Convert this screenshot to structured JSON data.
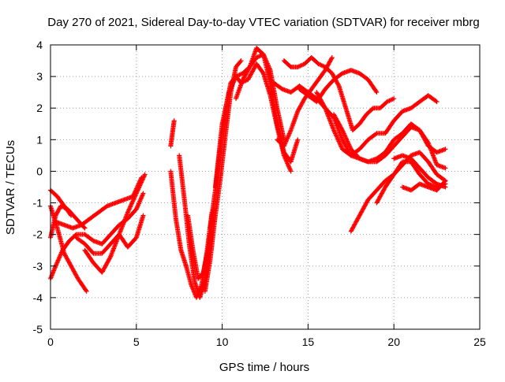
{
  "chart_data": {
    "type": "scatter",
    "title": "Day 270 of 2021, Sidereal Day-to-day VTEC variation (SDTVAR) for receiver mbrg",
    "xlabel": "GPS time / hours",
    "ylabel": "SDTVAR / TECUs",
    "xlim": [
      0,
      25
    ],
    "ylim": [
      -5,
      4
    ],
    "xticks": [
      0,
      5,
      10,
      15,
      20,
      25
    ],
    "yticks": [
      -5,
      -4,
      -3,
      -2,
      -1,
      0,
      1,
      2,
      3,
      4
    ],
    "xtick_labels": [
      "0",
      "5",
      "10",
      "15",
      "20",
      "25"
    ],
    "ytick_labels": [
      "-5",
      "-4",
      "-3",
      "-2",
      "-1",
      "0",
      "1",
      "2",
      "3",
      "4"
    ],
    "grid": true,
    "marker": "+",
    "color": "#ff0000",
    "series": [
      {
        "x": [
          0.0,
          0.3,
          0.6,
          1.0,
          1.5,
          2.0
        ],
        "y": [
          -2.1,
          -1.4,
          -1.1,
          -1.2,
          -1.5,
          -1.8
        ]
      },
      {
        "x": [
          0.0,
          0.3,
          0.7,
          1.1,
          1.5,
          2.0,
          2.5,
          3.0,
          3.5,
          4.0,
          4.5,
          5.0,
          5.4
        ],
        "y": [
          -3.4,
          -3.0,
          -2.5,
          -2.2,
          -2.0,
          -2.0,
          -2.2,
          -2.3,
          -2.0,
          -1.7,
          -1.5,
          -1.2,
          -0.7
        ]
      },
      {
        "x": [
          0.0,
          0.4,
          0.8,
          1.2,
          1.6,
          2.1
        ],
        "y": [
          -1.1,
          -1.8,
          -2.6,
          -3.0,
          -3.4,
          -3.8
        ]
      },
      {
        "x": [
          0.0,
          0.4,
          0.8,
          1.2
        ],
        "y": [
          -0.6,
          -0.8,
          -1.1,
          -1.4
        ]
      },
      {
        "x": [
          0.3,
          0.8,
          1.3,
          1.8,
          2.3,
          2.8,
          3.3,
          3.8,
          4.3,
          4.8,
          5.3
        ],
        "y": [
          -1.6,
          -1.7,
          -1.8,
          -1.7,
          -1.5,
          -1.3,
          -1.1,
          -1.0,
          -0.9,
          -0.8,
          -0.2
        ]
      },
      {
        "x": [
          1.5,
          2.0,
          2.5,
          3.0,
          3.5,
          4.0,
          4.5,
          5.0,
          5.4
        ],
        "y": [
          -2.1,
          -2.3,
          -2.6,
          -2.6,
          -2.3,
          -2.0,
          -2.4,
          -2.1,
          -1.4
        ]
      },
      {
        "x": [
          2.0,
          2.5,
          3.0,
          3.5,
          4.0,
          4.5,
          5.0,
          5.5
        ],
        "y": [
          -2.5,
          -2.9,
          -3.2,
          -2.7,
          -2.0,
          -1.3,
          -0.7,
          -0.1
        ]
      },
      {
        "x": [
          7.0,
          7.1,
          7.2
        ],
        "y": [
          0.8,
          1.2,
          1.6
        ]
      },
      {
        "x": [
          7.0,
          7.3,
          7.6,
          7.9,
          8.2,
          8.5,
          8.8,
          9.1,
          9.4
        ],
        "y": [
          0.0,
          -1.5,
          -2.5,
          -3.0,
          -3.6,
          -4.0,
          -3.6,
          -2.6,
          -1.3
        ]
      },
      {
        "x": [
          7.5,
          7.8,
          8.1,
          8.4,
          8.7,
          9.0,
          9.3
        ],
        "y": [
          0.5,
          -0.9,
          -2.4,
          -3.5,
          -4.0,
          -3.4,
          -2.0
        ]
      },
      {
        "x": [
          8.0,
          8.3,
          8.6,
          8.9,
          9.2,
          9.5
        ],
        "y": [
          -1.4,
          -2.5,
          -3.4,
          -3.2,
          -2.4,
          -1.2
        ]
      },
      {
        "x": [
          9.0,
          9.3,
          9.6,
          9.9,
          10.2,
          10.5,
          10.8,
          11.1
        ],
        "y": [
          -3.8,
          -2.8,
          -1.4,
          -0.2,
          1.2,
          2.5,
          3.3,
          3.5
        ]
      },
      {
        "x": [
          9.3,
          9.6,
          9.9,
          10.2,
          10.5,
          10.8,
          11.1,
          11.5,
          12.0,
          12.4,
          12.8,
          13.2,
          13.6,
          14.0
        ],
        "y": [
          -1.8,
          -0.6,
          0.8,
          2.0,
          2.8,
          3.0,
          2.8,
          2.9,
          3.4,
          3.1,
          2.4,
          1.4,
          0.5,
          0.0
        ]
      },
      {
        "x": [
          9.6,
          10.0,
          10.4,
          10.8,
          11.2,
          11.6,
          12.0,
          12.4,
          12.8,
          13.2,
          13.6
        ],
        "y": [
          -0.5,
          1.5,
          2.5,
          3.0,
          3.1,
          3.3,
          3.6,
          3.7,
          3.2,
          2.0,
          1.0
        ]
      },
      {
        "x": [
          10.8,
          11.2,
          11.6,
          12.0,
          12.4,
          12.8,
          13.2,
          13.6,
          14.0,
          14.4
        ],
        "y": [
          2.3,
          2.9,
          3.3,
          3.9,
          3.7,
          2.8,
          1.5,
          0.6,
          0.3,
          1.0
        ]
      },
      {
        "x": [
          13.2,
          13.6,
          14.0,
          14.4,
          14.8,
          15.2,
          15.6,
          16.0,
          16.4
        ],
        "y": [
          1.0,
          0.8,
          1.3,
          1.9,
          2.3,
          2.6,
          2.9,
          3.2,
          3.6
        ]
      },
      {
        "x": [
          13.6,
          14.0,
          14.4,
          14.8,
          15.2,
          15.6,
          16.0,
          16.4,
          16.8,
          17.2,
          17.6,
          18.0,
          18.4,
          18.8,
          19.2,
          19.6,
          20.0
        ],
        "y": [
          3.5,
          3.3,
          3.3,
          3.4,
          3.6,
          3.4,
          3.3,
          3.1,
          2.7,
          2.0,
          1.3,
          1.5,
          1.8,
          2.0,
          2.0,
          2.2,
          2.3
        ]
      },
      {
        "x": [
          13.0,
          13.5,
          14.0,
          14.5,
          15.0,
          15.5,
          16.0,
          16.5,
          17.0,
          17.5,
          18.0,
          18.5,
          19.0,
          19.5,
          20.0,
          20.5,
          21.0,
          21.5,
          22.0,
          22.5,
          23.0
        ],
        "y": [
          2.8,
          2.6,
          2.5,
          2.7,
          2.5,
          2.3,
          2.0,
          1.7,
          1.0,
          0.5,
          0.4,
          0.3,
          0.4,
          0.6,
          1.0,
          1.2,
          1.5,
          1.3,
          0.8,
          0.6,
          0.7
        ]
      },
      {
        "x": [
          14.5,
          15.0,
          15.5,
          16.0,
          16.5,
          17.0,
          17.5,
          18.0,
          18.5,
          19.0
        ],
        "y": [
          2.6,
          2.4,
          2.2,
          2.6,
          2.9,
          3.1,
          3.2,
          3.1,
          2.9,
          2.5
        ]
      },
      {
        "x": [
          15.5,
          16.0,
          16.5,
          17.0,
          17.5,
          18.0,
          18.5,
          19.0,
          19.5,
          20.0,
          20.5,
          21.0,
          21.5,
          22.0,
          22.5
        ],
        "y": [
          2.5,
          2.0,
          1.3,
          0.7,
          0.5,
          0.7,
          1.0,
          1.2,
          1.2,
          1.6,
          1.9,
          2.0,
          2.2,
          2.4,
          2.2
        ]
      },
      {
        "x": [
          16.5,
          17.0,
          17.5,
          18.0,
          18.5,
          19.0,
          19.5,
          20.0,
          20.5,
          21.0,
          21.5,
          22.0,
          22.5,
          23.0
        ],
        "y": [
          1.8,
          1.3,
          0.7,
          0.4,
          0.3,
          0.3,
          0.5,
          0.8,
          1.1,
          1.4,
          1.3,
          0.9,
          0.2,
          0.1
        ]
      },
      {
        "x": [
          17.5,
          18.0,
          18.5,
          19.0,
          19.5,
          20.0,
          20.5,
          21.0,
          21.5,
          22.0,
          22.5,
          23.0
        ],
        "y": [
          -1.9,
          -1.4,
          -0.9,
          -0.6,
          -0.3,
          -0.1,
          0.2,
          0.5,
          0.6,
          0.3,
          -0.1,
          -0.3
        ]
      },
      {
        "x": [
          19.0,
          19.5,
          20.0,
          20.5,
          21.0,
          21.5,
          22.0,
          22.5,
          23.0
        ],
        "y": [
          -1.0,
          -0.5,
          -0.1,
          0.3,
          0.3,
          -0.1,
          -0.4,
          -0.5,
          -0.4
        ]
      },
      {
        "x": [
          20.5,
          21.0,
          21.5,
          22.0,
          22.5,
          23.0
        ],
        "y": [
          -0.5,
          -0.6,
          -0.4,
          -0.5,
          -0.6,
          -0.3
        ]
      },
      {
        "x": [
          20.0,
          20.5,
          21.0,
          21.5,
          22.0,
          22.5,
          23.0
        ],
        "y": [
          0.4,
          0.5,
          0.4,
          0.1,
          -0.2,
          -0.4,
          -0.5
        ]
      }
    ]
  }
}
